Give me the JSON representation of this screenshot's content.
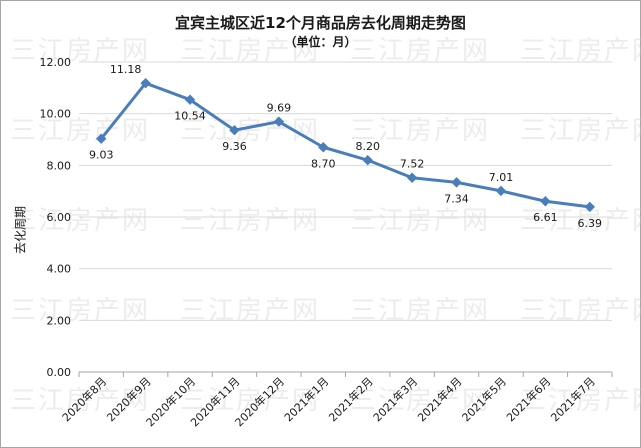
{
  "chart_data": {
    "type": "line",
    "title": "宜宾主城区近12个月商品房去化周期走势图",
    "subtitle": "（单位：月）",
    "ylabel": "去化周期",
    "xlabel": "",
    "ylim": [
      0,
      12
    ],
    "yticks": [
      "0.00",
      "2.00",
      "4.00",
      "6.00",
      "8.00",
      "10.00",
      "12.00"
    ],
    "grid": true,
    "categories": [
      "2020年8月",
      "2020年9月",
      "2020年10月",
      "2020年11月",
      "2020年12月",
      "2021年1月",
      "2021年2月",
      "2021年3月",
      "2021年4月",
      "2021年5月",
      "2021年6月",
      "2021年7月"
    ],
    "series": [
      {
        "values": [
          9.03,
          11.18,
          10.54,
          9.36,
          9.69,
          8.7,
          8.2,
          7.52,
          7.34,
          7.01,
          6.61,
          6.39
        ],
        "labels": [
          "9.03",
          "11.18",
          "10.54",
          "9.36",
          "9.69",
          "8.70",
          "8.20",
          "7.52",
          "7.34",
          "7.01",
          "6.61",
          "6.39"
        ],
        "color": "#4a7ebb"
      }
    ],
    "watermark": "三江房产网"
  }
}
